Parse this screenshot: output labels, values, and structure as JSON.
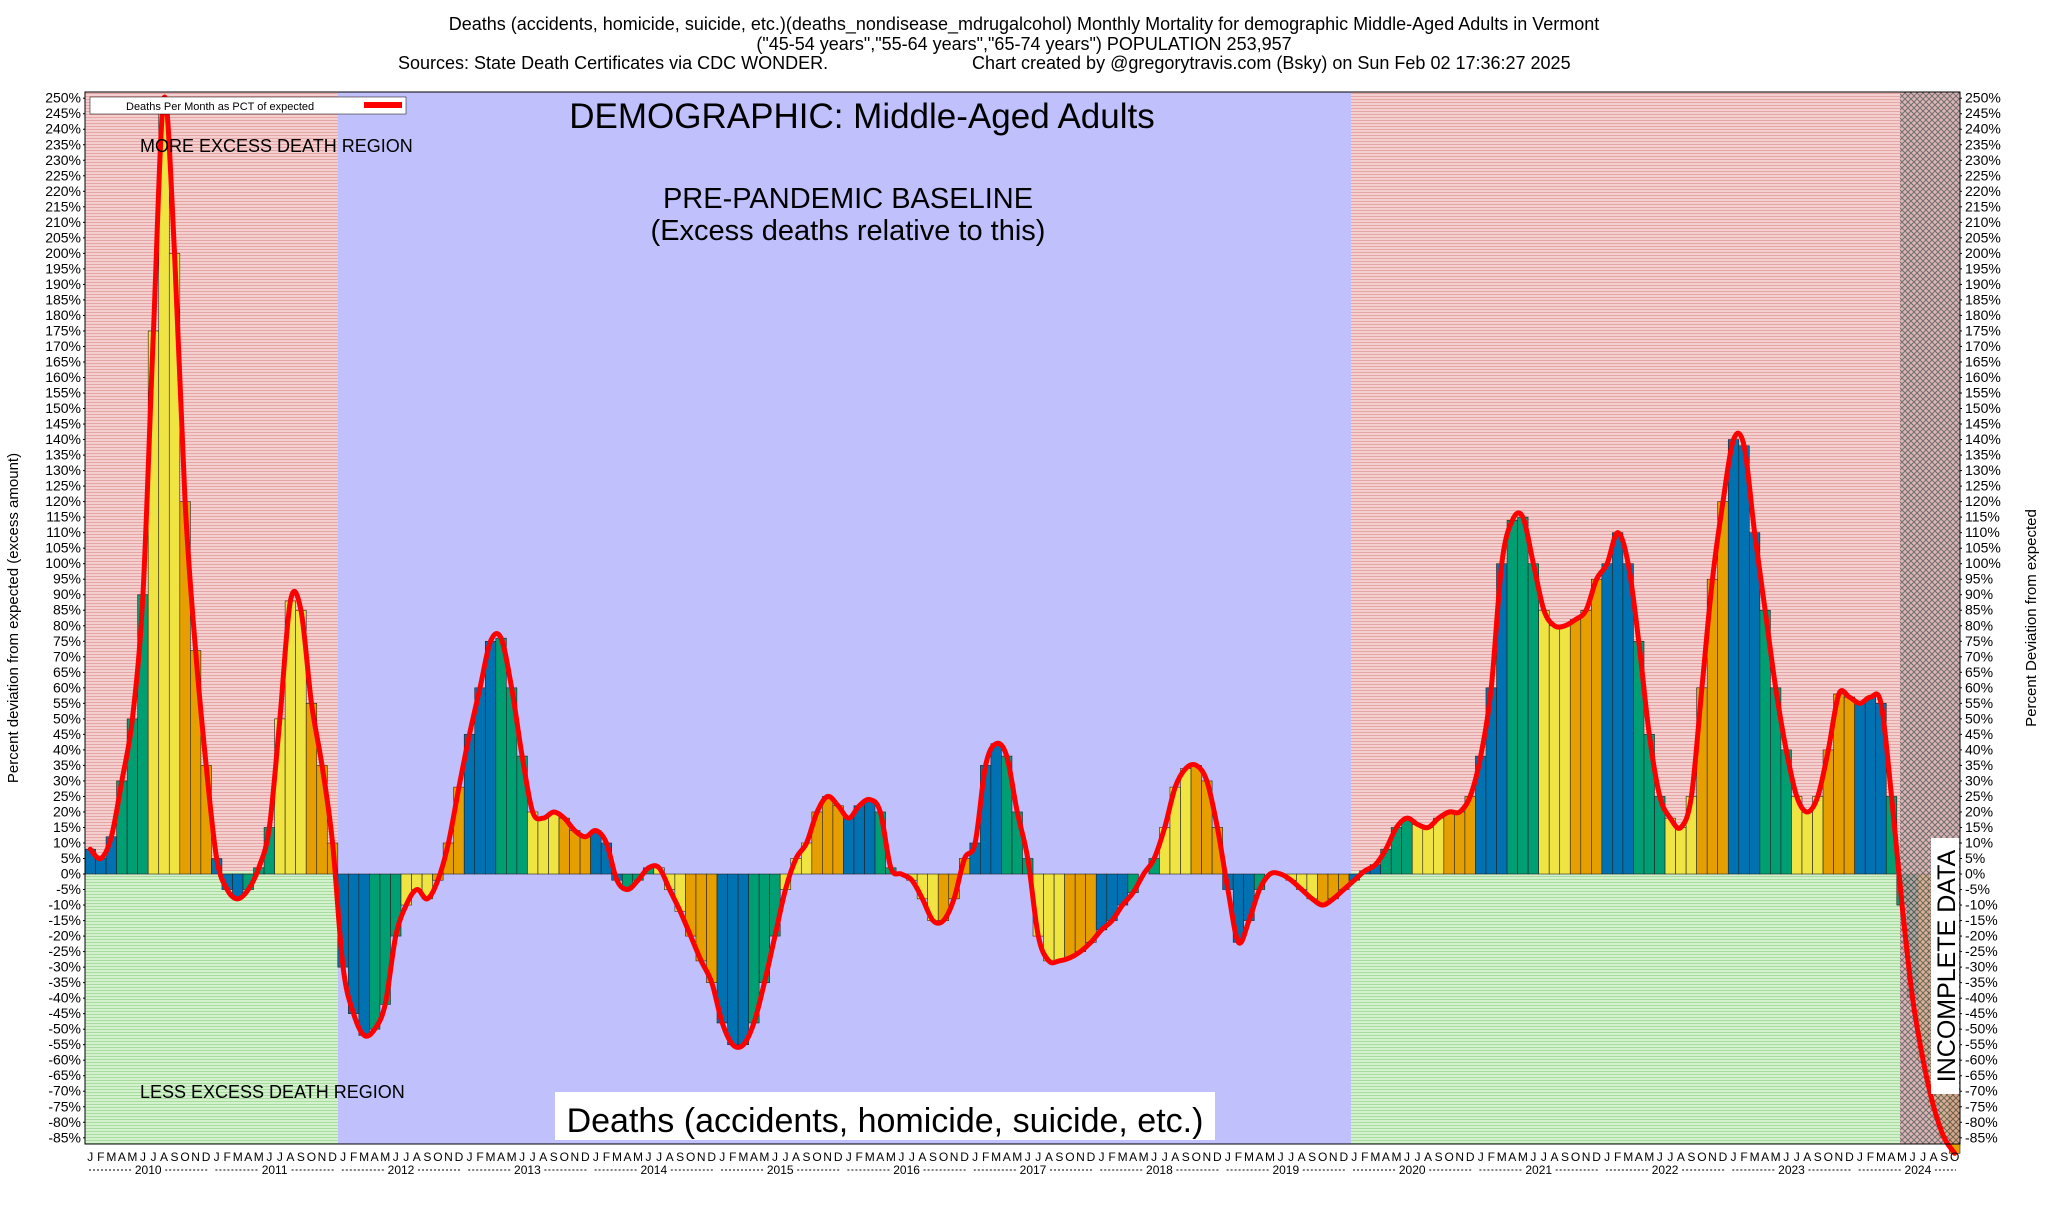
{
  "header": {
    "title_line1": "Deaths (accidents, homicide, suicide, etc.)(deaths_nondisease_mdrugalcohol) Monthly Mortality for demographic Middle-Aged Adults in Vermont",
    "title_line2": "(\"45-54 years\",\"55-64 years\",\"65-74 years\") POPULATION 253,957",
    "sources": "Sources: State Death Certificates via CDC WONDER.",
    "credit": "Chart created by @gregorytravis.com (Bsky) on Sun Feb 02 17:36:27 2025"
  },
  "labels": {
    "demographic": "DEMOGRAPHIC: Middle-Aged Adults",
    "baseline_line1": "PRE-PANDEMIC BASELINE",
    "baseline_line2": "(Excess deaths relative to this)",
    "more_region": "MORE EXCESS DEATH REGION",
    "less_region": "LESS EXCESS DEATH REGION",
    "incomplete": "INCOMPLETE DATA",
    "bottom_category": "Deaths (accidents, homicide, suicide, etc.)",
    "legend": "Deaths Per Month as PCT of expected"
  },
  "colors": {
    "excess_bg": "#f2c4c4",
    "deficit_bg": "#c6eec0",
    "baseline_bg": "#c0c0fc",
    "line": "#ff0000",
    "bar_palette": [
      "#0072b2",
      "#009e73",
      "#f0e442",
      "#e69f00"
    ]
  },
  "chart_data": {
    "type": "bar",
    "x_start": "2010-01",
    "x_end": "2024-10",
    "month_letters": [
      "J",
      "F",
      "M",
      "A",
      "M",
      "J",
      "J",
      "A",
      "S",
      "O",
      "N",
      "D"
    ],
    "years": [
      "2010",
      "2011",
      "2012",
      "2013",
      "2014",
      "2015",
      "2016",
      "2017",
      "2018",
      "2019",
      "2020",
      "2021",
      "2022",
      "2023",
      "2024"
    ],
    "ylabel_left": "Percent deviation from expected (excess amount)",
    "ylabel_right": "Percent Deviation from expected",
    "ylim": [
      -87,
      252
    ],
    "y_tick_step": 5,
    "y_tick_min": -85,
    "y_tick_max": 250,
    "baseline_period": [
      "2012-01",
      "2019-12"
    ],
    "incomplete_period": [
      "2024-06",
      "2024-10"
    ],
    "legend_position": "top-left",
    "series": [
      {
        "name": "Deaths Per Month as PCT of expected",
        "values": [
          8,
          5,
          12,
          30,
          50,
          90,
          175,
          250,
          200,
          120,
          72,
          35,
          5,
          -5,
          -8,
          -5,
          2,
          15,
          50,
          88,
          85,
          55,
          35,
          10,
          -30,
          -45,
          -52,
          -50,
          -42,
          -20,
          -10,
          -5,
          -8,
          -2,
          10,
          28,
          45,
          60,
          75,
          76,
          60,
          38,
          20,
          18,
          20,
          18,
          14,
          12,
          14,
          10,
          -2,
          -5,
          -2,
          2,
          2,
          -5,
          -12,
          -20,
          -28,
          -35,
          -48,
          -55,
          -55,
          -48,
          -35,
          -20,
          -5,
          5,
          10,
          20,
          25,
          22,
          18,
          22,
          24,
          20,
          2,
          0,
          -2,
          -8,
          -15,
          -15,
          -8,
          5,
          10,
          35,
          42,
          38,
          20,
          5,
          -20,
          -28,
          -28,
          -27,
          -25,
          -22,
          -18,
          -15,
          -10,
          -6,
          0,
          5,
          15,
          28,
          34,
          35,
          30,
          15,
          -5,
          -22,
          -15,
          -5,
          0,
          0,
          -2,
          -5,
          -8,
          -10,
          -8,
          -5,
          -2,
          1,
          3,
          8,
          15,
          18,
          16,
          15,
          18,
          20,
          20,
          25,
          38,
          60,
          100,
          114,
          115,
          100,
          85,
          80,
          80,
          82,
          85,
          95,
          100,
          110,
          100,
          75,
          45,
          25,
          18,
          15,
          25,
          60,
          95,
          120,
          140,
          138,
          110,
          85,
          60,
          40,
          25,
          20,
          25,
          40,
          58,
          57,
          55,
          57,
          55,
          25,
          -10,
          -40,
          -60,
          -75,
          -85,
          -90
        ]
      }
    ]
  }
}
